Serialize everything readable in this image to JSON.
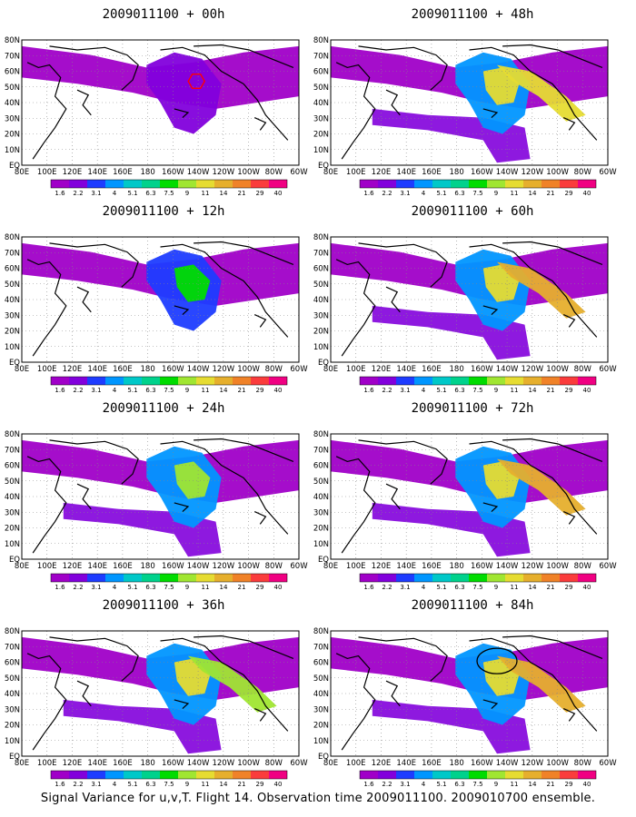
{
  "figure": {
    "footer": "Signal Variance for u,v,T. Flight 14. Observation time 2009011100. 2009010700 ensemble.",
    "lon_labels": [
      "80E",
      "100E",
      "120E",
      "140E",
      "160E",
      "180",
      "160W",
      "140W",
      "120W",
      "100W",
      "80W",
      "60W"
    ],
    "lat_labels": [
      "80N",
      "70N",
      "60N",
      "50N",
      "40N",
      "30N",
      "20N",
      "10N",
      "EQ"
    ],
    "colorbar": {
      "levels": [
        "1.6",
        "2.2",
        "3.1",
        "4",
        "5.1",
        "6.3",
        "7.5",
        "9",
        "11",
        "14",
        "21",
        "29",
        "40"
      ],
      "colors": [
        "#a000c8",
        "#8200dc",
        "#1e3cff",
        "#0096ff",
        "#00c8c8",
        "#00d28c",
        "#00dc00",
        "#a0e632",
        "#e6dc32",
        "#e6af2d",
        "#f08228",
        "#fa3c3c",
        "#f00082"
      ]
    },
    "panels": [
      {
        "title": "2009011100 + 00h",
        "level": 1,
        "marker": "red-hexagon"
      },
      {
        "title": "2009011100 + 48h",
        "level": 5
      },
      {
        "title": "2009011100 + 12h",
        "level": 2
      },
      {
        "title": "2009011100 + 60h",
        "level": 6
      },
      {
        "title": "2009011100 + 24h",
        "level": 3
      },
      {
        "title": "2009011100 + 72h",
        "level": 7
      },
      {
        "title": "2009011100 + 36h",
        "level": 4
      },
      {
        "title": "2009011100 + 84h",
        "level": 8,
        "marker": "black-circle"
      }
    ]
  }
}
